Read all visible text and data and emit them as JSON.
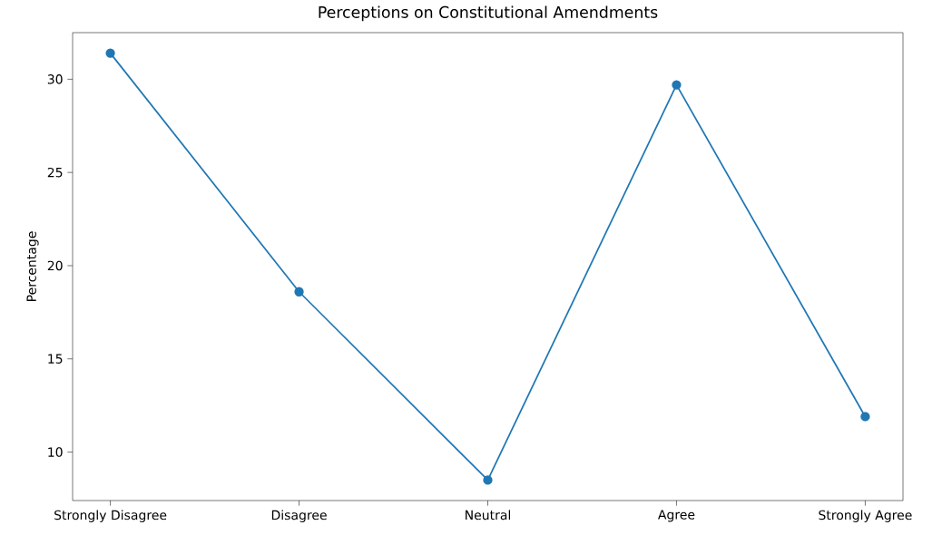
{
  "chart_data": {
    "type": "line",
    "title": "Perceptions on Constitutional Amendments",
    "ylabel": "Percentage",
    "categories": [
      "Strongly Disagree",
      "Disagree",
      "Neutral",
      "Agree",
      "Strongly Agree"
    ],
    "values": [
      31.4,
      18.6,
      8.5,
      29.7,
      11.9
    ],
    "color": "#1f77b4",
    "marker": "circle",
    "line_style": "solid",
    "ylim": [
      7.4,
      32.5
    ],
    "yticks": [
      10,
      15,
      20,
      25,
      30
    ],
    "grid": false
  }
}
